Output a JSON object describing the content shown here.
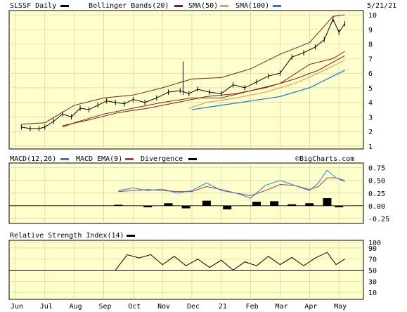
{
  "header": {
    "symbol": "SLSSF Daily",
    "bollinger": "Bollinger Bands(20)",
    "sma50": "SMA(50)",
    "sma100": "SMA(100)",
    "date": "5/21/21"
  },
  "macd_header": {
    "macd": "MACD(12,26)",
    "ema": "MACD EMA(9)",
    "divergence": "Divergence",
    "brand": "©BigCharts.com"
  },
  "rsi_header": {
    "rsi": "Relative Strength Index(14)"
  },
  "colors": {
    "background": "#ffffcc",
    "price": "#000000",
    "bollinger": "#8b1a1a",
    "sma50": "#8b1a1a",
    "sma100": "#d9a55a",
    "macd": "#1e7fe0",
    "macd_ema": "#b23a3a",
    "divergence": "#000000",
    "rsi": "#000000"
  },
  "chart_data": [
    {
      "type": "line",
      "title": "SLSSF Daily",
      "x_ticks": [
        "Jun",
        "Jul",
        "Aug",
        "Sep",
        "Oct",
        "Nov",
        "Dec",
        "21",
        "Feb",
        "Mar",
        "Apr",
        "May"
      ],
      "y_ticks": [
        "1",
        "2",
        "3",
        "4",
        "5",
        "6",
        "7",
        "8",
        "9",
        "10"
      ],
      "ylim": [
        1,
        10
      ],
      "series": [
        {
          "name": "SLSSF Daily",
          "x": [
            0.2,
            0.5,
            0.8,
            1.0,
            1.3,
            1.6,
            1.9,
            2.2,
            2.5,
            2.8,
            3.1,
            3.4,
            3.7,
            4.0,
            4.4,
            4.8,
            5.2,
            5.6,
            5.9,
            6.2,
            6.6,
            7.0,
            7.4,
            7.8,
            8.2,
            8.6,
            9.0,
            9.4,
            9.8,
            10.2,
            10.5,
            10.8,
            11.0,
            11.2
          ],
          "values": [
            2.3,
            2.2,
            2.2,
            2.3,
            2.7,
            3.2,
            3.0,
            3.6,
            3.5,
            3.8,
            4.1,
            4.0,
            3.9,
            4.2,
            4.0,
            4.3,
            4.7,
            4.8,
            4.6,
            4.9,
            4.7,
            4.6,
            5.2,
            5.0,
            5.4,
            5.8,
            6.0,
            7.1,
            7.4,
            7.8,
            8.3,
            9.7,
            8.8,
            9.4
          ]
        },
        {
          "name": "Bollinger Bands(20) Upper",
          "x": [
            0.2,
            1.0,
            2.0,
            3.0,
            4.0,
            5.0,
            6.0,
            7.0,
            8.0,
            9.0,
            10.0,
            10.8,
            11.2
          ],
          "values": [
            2.5,
            2.6,
            3.8,
            4.3,
            4.5,
            5.0,
            5.6,
            5.7,
            6.3,
            7.3,
            8.1,
            9.9,
            10.0
          ]
        },
        {
          "name": "Bollinger Bands(20) Lower",
          "x": [
            1.6,
            2.0,
            3.0,
            4.0,
            5.0,
            6.0,
            7.0,
            8.0,
            9.0,
            10.0,
            10.8,
            11.2
          ],
          "values": [
            2.3,
            2.6,
            3.2,
            3.6,
            4.0,
            4.3,
            4.3,
            4.8,
            5.3,
            6.6,
            7.0,
            7.5
          ]
        },
        {
          "name": "SMA(50)",
          "x": [
            1.6,
            2.5,
            3.5,
            4.5,
            5.5,
            6.5,
            7.5,
            8.5,
            9.5,
            10.3,
            11.2
          ],
          "values": [
            2.4,
            2.8,
            3.3,
            3.6,
            4.0,
            4.4,
            4.6,
            5.0,
            5.6,
            6.2,
            7.2
          ]
        },
        {
          "name": "SMA(100)",
          "x": [
            5.9,
            6.5,
            7.5,
            8.5,
            9.5,
            10.3,
            11.2
          ],
          "values": [
            3.6,
            4.0,
            4.3,
            4.7,
            5.3,
            6.0,
            6.9
          ]
        },
        {
          "name": "SMA(100) blue",
          "x": [
            6.0,
            7.0,
            8.0,
            9.0,
            10.0,
            10.6,
            11.2
          ],
          "values": [
            3.5,
            3.8,
            4.1,
            4.4,
            5.0,
            5.6,
            6.2
          ]
        }
      ],
      "spike": {
        "x": 5.7,
        "values": [
          4.5,
          6.8
        ]
      }
    },
    {
      "type": "line",
      "title": "MACD(12,26)",
      "y_ticks": [
        "0.75",
        "0.50",
        "0.25",
        "0.00",
        "-0.25"
      ],
      "ylim": [
        -0.3,
        0.8
      ],
      "series": [
        {
          "name": "MACD(12,26)",
          "x": [
            3.5,
            4.0,
            4.5,
            5.0,
            5.5,
            6.0,
            6.5,
            7.0,
            7.5,
            8.0,
            8.5,
            9.0,
            9.5,
            10.0,
            10.3,
            10.6,
            10.9,
            11.2
          ],
          "values": [
            0.3,
            0.35,
            0.3,
            0.33,
            0.25,
            0.3,
            0.45,
            0.3,
            0.25,
            0.15,
            0.4,
            0.5,
            0.4,
            0.3,
            0.45,
            0.7,
            0.55,
            0.5
          ]
        },
        {
          "name": "MACD EMA(9)",
          "x": [
            3.5,
            4.0,
            4.5,
            5.0,
            5.5,
            6.0,
            6.5,
            7.0,
            7.5,
            8.0,
            8.5,
            9.0,
            9.5,
            10.0,
            10.3,
            10.6,
            10.9,
            11.2
          ],
          "values": [
            0.28,
            0.3,
            0.32,
            0.3,
            0.28,
            0.28,
            0.38,
            0.32,
            0.25,
            0.2,
            0.3,
            0.42,
            0.4,
            0.32,
            0.38,
            0.55,
            0.55,
            0.48
          ]
        },
        {
          "name": "Divergence",
          "x": [
            3.5,
            4.5,
            5.2,
            5.8,
            6.5,
            7.2,
            7.6,
            8.2,
            8.8,
            9.4,
            10.0,
            10.6,
            11.0
          ],
          "values": [
            0.02,
            -0.03,
            0.05,
            -0.05,
            0.1,
            -0.07,
            0.0,
            0.08,
            0.09,
            0.03,
            0.05,
            0.15,
            -0.03
          ]
        }
      ]
    },
    {
      "type": "line",
      "title": "Relative Strength Index(14)",
      "y_ticks": [
        "100",
        "90",
        "70",
        "50",
        "30",
        "10"
      ],
      "ylim": [
        0,
        100
      ],
      "series": [
        {
          "name": "Relative Strength Index(14)",
          "x": [
            3.4,
            3.8,
            4.2,
            4.6,
            5.0,
            5.4,
            5.8,
            6.2,
            6.6,
            7.0,
            7.4,
            7.8,
            8.2,
            8.6,
            9.0,
            9.4,
            9.8,
            10.2,
            10.6,
            10.9,
            11.2
          ],
          "values": [
            50,
            78,
            72,
            78,
            60,
            75,
            58,
            70,
            55,
            68,
            50,
            65,
            58,
            75,
            60,
            73,
            58,
            72,
            82,
            60,
            70
          ]
        }
      ]
    }
  ]
}
